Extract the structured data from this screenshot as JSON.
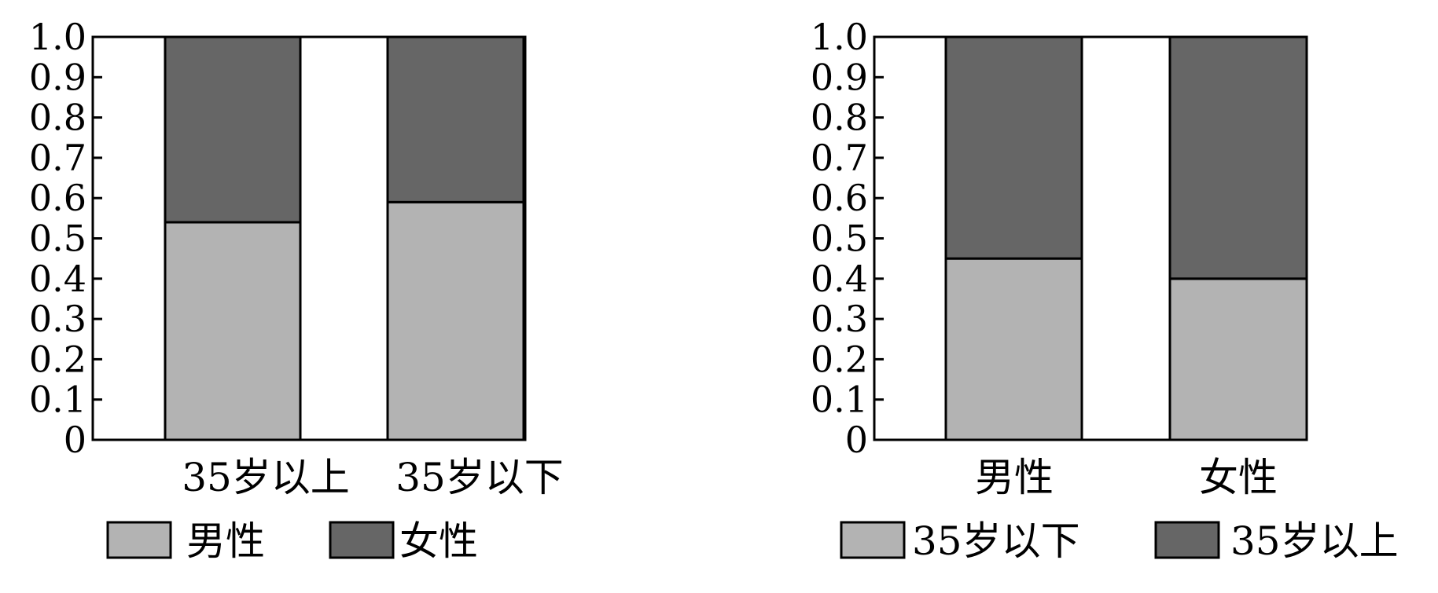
{
  "chart_data": [
    {
      "type": "bar",
      "stacked": true,
      "categories": [
        "35岁以上",
        "35岁以下"
      ],
      "series": [
        {
          "name": "男性",
          "values": [
            0.54,
            0.59
          ]
        },
        {
          "name": "女性",
          "values": [
            0.46,
            0.41
          ]
        }
      ],
      "ylim": [
        0,
        1.0
      ],
      "yticks": [
        "0",
        "0.1",
        "0.2",
        "0.3",
        "0.4",
        "0.5",
        "0.6",
        "0.7",
        "0.8",
        "0.9",
        "1.0"
      ],
      "colors": [
        "#b3b3b3",
        "#666666"
      ],
      "legend": "bottom"
    },
    {
      "type": "bar",
      "stacked": true,
      "categories": [
        "男性",
        "女性"
      ],
      "series": [
        {
          "name": "35岁以下",
          "values": [
            0.45,
            0.4
          ]
        },
        {
          "name": "35岁以上",
          "values": [
            0.55,
            0.6
          ]
        }
      ],
      "ylim": [
        0,
        1.0
      ],
      "yticks": [
        "0",
        "0.1",
        "0.2",
        "0.3",
        "0.4",
        "0.5",
        "0.6",
        "0.7",
        "0.8",
        "0.9",
        "1.0"
      ],
      "colors": [
        "#b3b3b3",
        "#666666"
      ],
      "legend": "bottom"
    }
  ]
}
